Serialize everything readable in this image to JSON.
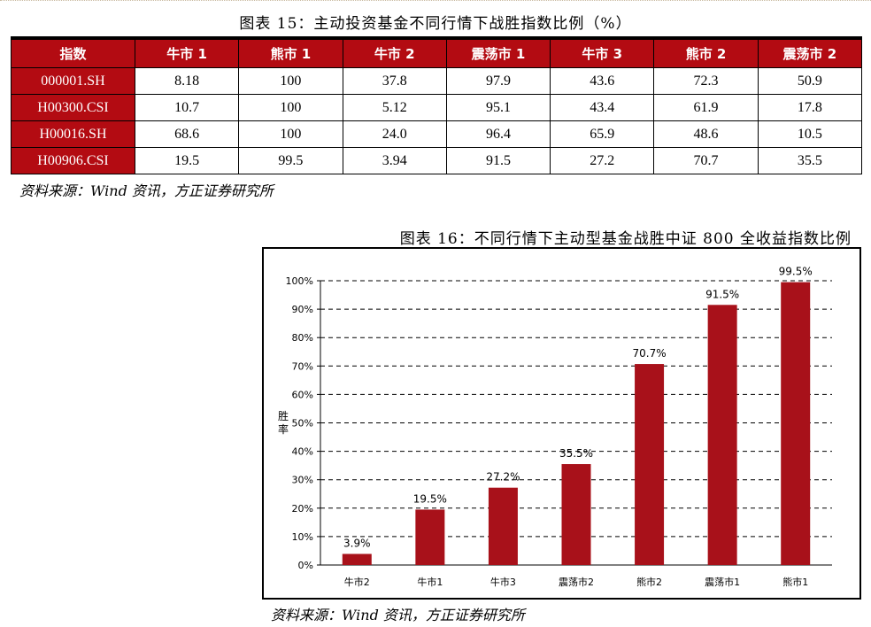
{
  "table": {
    "title": "图表 15：主动投资基金不同行情下战胜指数比例（%）",
    "headers": [
      "指数",
      "牛市 1",
      "熊市 1",
      "牛市 2",
      "震荡市 1",
      "牛市 3",
      "熊市 2",
      "震荡市 2"
    ],
    "rows": [
      {
        "code": "000001.SH",
        "values": [
          "8.18",
          "100",
          "37.8",
          "97.9",
          "43.6",
          "72.3",
          "50.9"
        ]
      },
      {
        "code": "H00300.CSI",
        "values": [
          "10.7",
          "100",
          "5.12",
          "95.1",
          "43.4",
          "61.9",
          "17.8"
        ]
      },
      {
        "code": "H00016.SH",
        "values": [
          "68.6",
          "100",
          "24.0",
          "96.4",
          "65.9",
          "48.6",
          "10.5"
        ]
      },
      {
        "code": "H00906.CSI",
        "values": [
          "19.5",
          "99.5",
          "3.94",
          "91.5",
          "27.2",
          "70.7",
          "35.5"
        ]
      }
    ],
    "source": "资料来源：Wind 资讯，方正证券研究所"
  },
  "chart": {
    "caption": "图表 16：不同行情下主动型基金战胜中证 800 全收益指数比例",
    "source": "资料来源：Wind 资讯，方正证券研究所"
  },
  "colors": {
    "accent": "#b30b12",
    "bar": "#a8111a"
  },
  "chart_data": {
    "type": "bar",
    "title": "",
    "xlabel": "",
    "ylabel": "胜率",
    "categories": [
      "牛市2",
      "牛市1",
      "牛市3",
      "震荡市2",
      "熊市2",
      "震荡市1",
      "熊市1"
    ],
    "values": [
      3.9,
      19.5,
      27.2,
      35.5,
      70.7,
      91.5,
      99.5
    ],
    "data_labels": [
      "3.9%",
      "19.5%",
      "27.2%",
      "35.5%",
      "70.7%",
      "91.5%",
      "99.5%"
    ],
    "yticks": [
      "0%",
      "10%",
      "20%",
      "30%",
      "40%",
      "50%",
      "60%",
      "70%",
      "80%",
      "90%",
      "100%"
    ],
    "ylim": [
      0,
      100
    ],
    "grid": true,
    "legend": "none"
  }
}
